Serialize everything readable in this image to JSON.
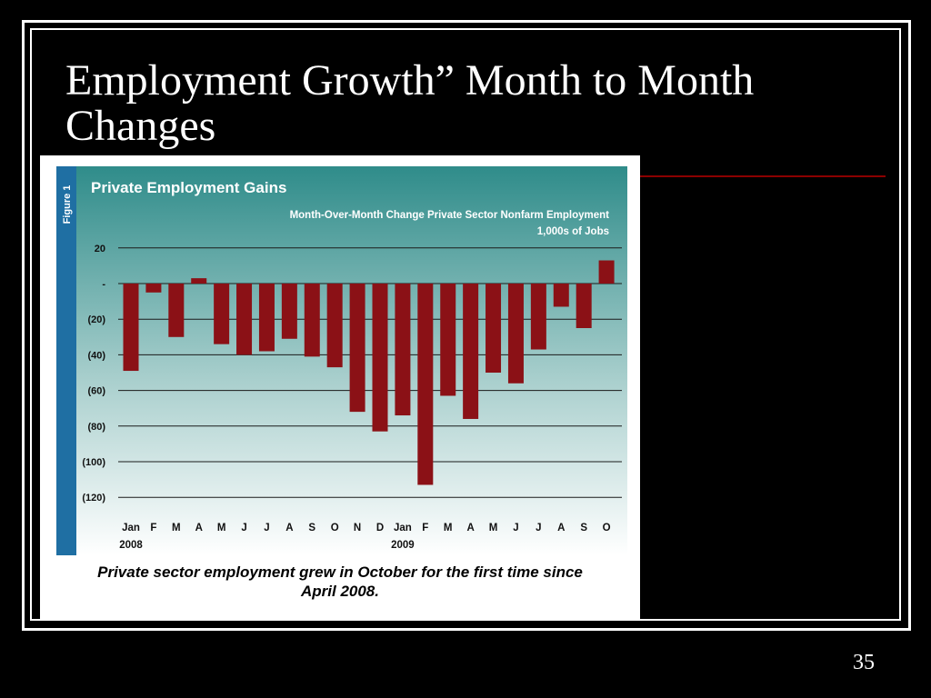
{
  "slide": {
    "title": "Employment Growth” Month to Month Changes",
    "slide_number": "35"
  },
  "figure": {
    "figure_label": "Figure 1",
    "caption": "Private sector employment grew in October for the first time since April 2008."
  },
  "colors": {
    "background": "#000000",
    "bar": "#8b1116",
    "panel_top": "#2f8c8a",
    "panel_bottom": "#ffffff",
    "sidebar": "#1f6fa3",
    "accent_rule": "#8b0000"
  },
  "chart_data": {
    "type": "bar",
    "title": "Private Employment Gains",
    "subtitle": "Month-Over-Month Change Private Sector Nonfarm Employment",
    "ylabel": "1,000s of Jobs",
    "ylim": [
      -125,
      25
    ],
    "yticks": [
      20,
      0,
      -20,
      -40,
      -60,
      -80,
      -100,
      -120
    ],
    "ytick_labels": [
      "20",
      "-",
      "(20)",
      "(40)",
      "(60)",
      "(80)",
      "(100)",
      "(120)"
    ],
    "categories": [
      "Jan",
      "F",
      "M",
      "A",
      "M",
      "J",
      "J",
      "A",
      "S",
      "O",
      "N",
      "D",
      "Jan",
      "F",
      "M",
      "A",
      "M",
      "J",
      "J",
      "A",
      "S",
      "O"
    ],
    "year_labels": [
      {
        "index": 0,
        "label": "2008"
      },
      {
        "index": 12,
        "label": "2009"
      }
    ],
    "values": [
      -49,
      -5,
      -30,
      3,
      -34,
      -40,
      -38,
      -31,
      -41,
      -47,
      -72,
      -83,
      -74,
      -113,
      -63,
      -76,
      -50,
      -56,
      -37,
      -13,
      -25,
      13
    ],
    "grid": true,
    "legend": "none"
  }
}
